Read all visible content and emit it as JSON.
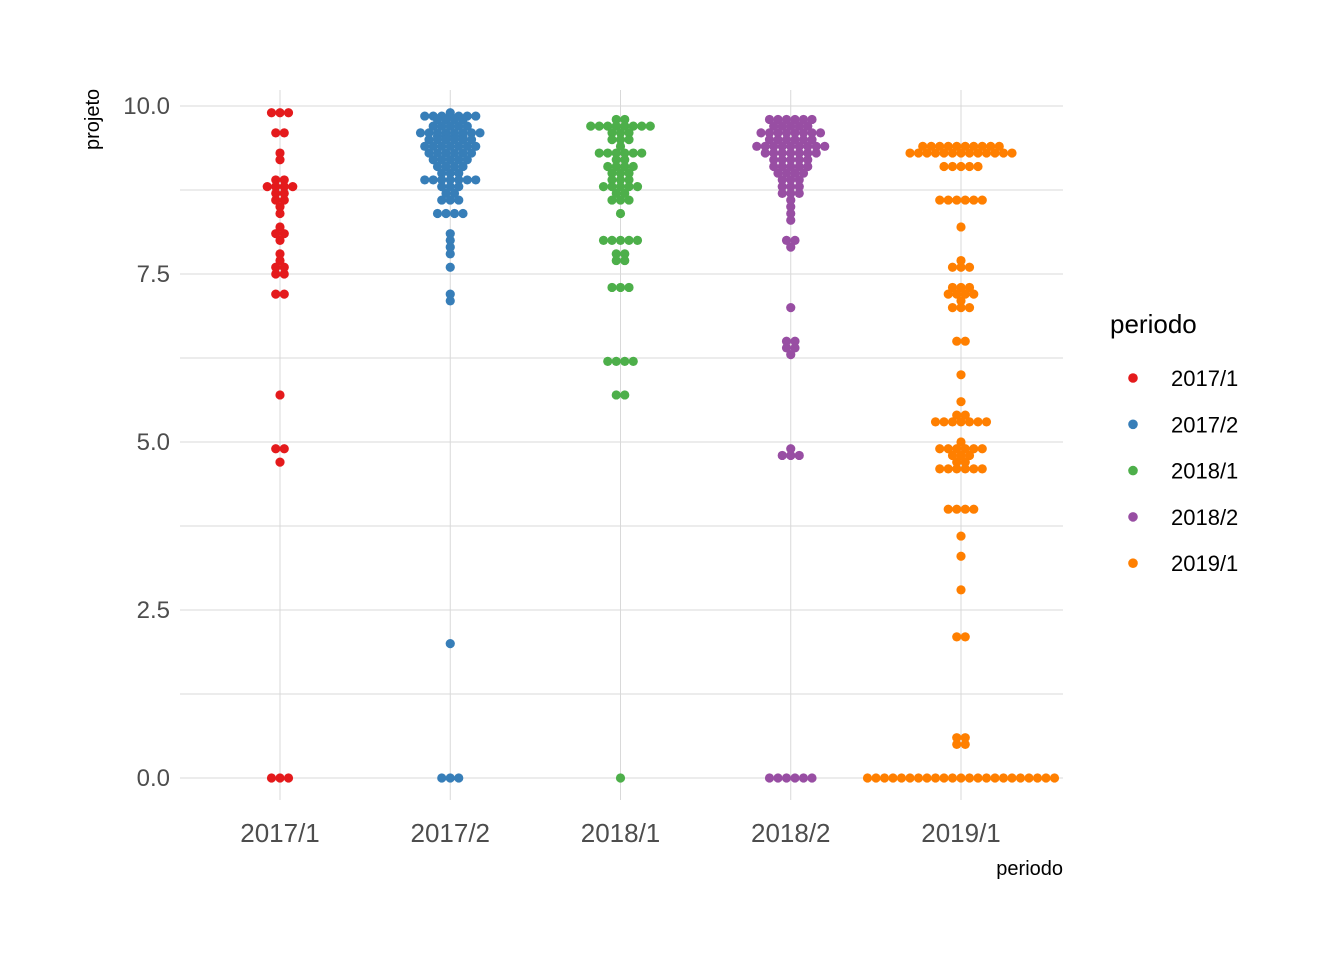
{
  "chart_data": {
    "type": "scatter",
    "subtype": "beeswarm",
    "xlabel": "periodo",
    "ylabel": "projeto",
    "ylim": [
      -0.35,
      10.35
    ],
    "yticks": [
      "0.0",
      "2.5",
      "5.0",
      "7.5",
      "10.0"
    ],
    "categories": [
      "2017/1",
      "2017/2",
      "2018/1",
      "2018/2",
      "2019/1"
    ],
    "grid": true,
    "legend": {
      "title": "periodo",
      "placement": "right"
    },
    "series": [
      {
        "name": "2017/1",
        "color": "#E41A1C",
        "values": [
          9.9,
          9.9,
          9.9,
          9.6,
          9.6,
          9.3,
          9.2,
          8.9,
          8.9,
          8.8,
          8.8,
          8.8,
          8.8,
          8.7,
          8.7,
          8.6,
          8.6,
          8.5,
          8.4,
          8.2,
          8.1,
          8.1,
          8.0,
          7.8,
          7.7,
          7.6,
          7.6,
          7.5,
          7.5,
          7.2,
          7.2,
          5.7,
          4.9,
          4.9,
          4.7,
          0.0,
          0.0,
          0.0
        ]
      },
      {
        "name": "2017/2",
        "color": "#377EB8",
        "values": [
          9.9,
          9.85,
          9.85,
          9.85,
          9.85,
          9.85,
          9.85,
          9.85,
          9.8,
          9.8,
          9.8,
          9.8,
          9.7,
          9.7,
          9.7,
          9.7,
          9.7,
          9.6,
          9.6,
          9.6,
          9.6,
          9.6,
          9.6,
          9.6,
          9.6,
          9.55,
          9.55,
          9.55,
          9.55,
          9.5,
          9.5,
          9.5,
          9.5,
          9.5,
          9.5,
          9.4,
          9.4,
          9.4,
          9.4,
          9.4,
          9.4,
          9.4,
          9.3,
          9.3,
          9.3,
          9.3,
          9.3,
          9.3,
          9.2,
          9.2,
          9.2,
          9.2,
          9.2,
          9.1,
          9.1,
          9.1,
          9.1,
          9.0,
          9.0,
          9.0,
          8.9,
          8.9,
          8.9,
          8.9,
          8.9,
          8.9,
          8.9,
          8.8,
          8.8,
          8.8,
          8.7,
          8.7,
          8.6,
          8.6,
          8.6,
          8.4,
          8.4,
          8.4,
          8.4,
          8.1,
          8.0,
          7.9,
          7.8,
          7.6,
          7.2,
          7.1,
          2.0,
          0.0,
          0.0,
          0.0
        ]
      },
      {
        "name": "2018/1",
        "color": "#4DAF4A",
        "values": [
          9.8,
          9.8,
          9.7,
          9.7,
          9.7,
          9.7,
          9.7,
          9.7,
          9.7,
          9.7,
          9.6,
          9.6,
          9.6,
          9.5,
          9.5,
          9.5,
          9.4,
          9.3,
          9.3,
          9.3,
          9.3,
          9.3,
          9.3,
          9.2,
          9.2,
          9.1,
          9.1,
          9.1,
          9.1,
          9.0,
          9.0,
          9.0,
          8.9,
          8.9,
          8.9,
          8.8,
          8.8,
          8.8,
          8.8,
          8.8,
          8.7,
          8.7,
          8.6,
          8.6,
          8.6,
          8.4,
          8.0,
          8.0,
          8.0,
          8.0,
          8.0,
          7.8,
          7.8,
          7.7,
          7.7,
          7.3,
          7.3,
          7.3,
          6.2,
          6.2,
          6.2,
          6.2,
          5.7,
          5.7,
          0.0
        ]
      },
      {
        "name": "2018/2",
        "color": "#984EA3",
        "values": [
          9.8,
          9.8,
          9.8,
          9.8,
          9.8,
          9.8,
          9.7,
          9.7,
          9.7,
          9.7,
          9.7,
          9.6,
          9.6,
          9.6,
          9.6,
          9.6,
          9.6,
          9.6,
          9.6,
          9.5,
          9.5,
          9.5,
          9.5,
          9.5,
          9.5,
          9.4,
          9.4,
          9.4,
          9.4,
          9.4,
          9.4,
          9.4,
          9.4,
          9.4,
          9.3,
          9.3,
          9.3,
          9.3,
          9.3,
          9.3,
          9.3,
          9.2,
          9.2,
          9.2,
          9.2,
          9.2,
          9.1,
          9.1,
          9.1,
          9.1,
          9.1,
          9.0,
          9.0,
          9.0,
          9.0,
          8.9,
          8.9,
          8.9,
          8.8,
          8.8,
          8.8,
          8.7,
          8.7,
          8.7,
          8.6,
          8.5,
          8.4,
          8.3,
          8.0,
          8.0,
          7.9,
          7.0,
          6.5,
          6.5,
          6.4,
          6.4,
          6.3,
          4.9,
          4.8,
          4.8,
          4.8,
          0.0,
          0.0,
          0.0,
          0.0,
          0.0,
          0.0
        ]
      },
      {
        "name": "2019/1",
        "color": "#FF7F00",
        "values": [
          9.4,
          9.4,
          9.4,
          9.4,
          9.4,
          9.4,
          9.4,
          9.4,
          9.4,
          9.4,
          9.3,
          9.3,
          9.3,
          9.3,
          9.3,
          9.3,
          9.3,
          9.3,
          9.3,
          9.3,
          9.3,
          9.3,
          9.3,
          9.1,
          9.1,
          9.1,
          9.1,
          9.1,
          8.6,
          8.6,
          8.6,
          8.6,
          8.6,
          8.6,
          8.2,
          7.7,
          7.6,
          7.6,
          7.6,
          7.3,
          7.3,
          7.3,
          7.2,
          7.2,
          7.2,
          7.2,
          7.1,
          7.0,
          7.0,
          7.0,
          6.5,
          6.5,
          6.0,
          5.6,
          5.4,
          5.4,
          5.3,
          5.3,
          5.3,
          5.3,
          5.3,
          5.3,
          5.3,
          5.0,
          4.9,
          4.9,
          4.9,
          4.9,
          4.9,
          4.9,
          4.8,
          4.8,
          4.8,
          4.7,
          4.7,
          4.6,
          4.6,
          4.6,
          4.6,
          4.6,
          4.6,
          4.0,
          4.0,
          4.0,
          4.0,
          3.6,
          3.3,
          2.8,
          2.1,
          2.1,
          0.6,
          0.6,
          0.5,
          0.5,
          0.0,
          0.0,
          0.0,
          0.0,
          0.0,
          0.0,
          0.0,
          0.0,
          0.0,
          0.0,
          0.0,
          0.0,
          0.0,
          0.0,
          0.0,
          0.0,
          0.0,
          0.0,
          0.0,
          0.0,
          0.0,
          0.0,
          0.0
        ]
      }
    ]
  }
}
